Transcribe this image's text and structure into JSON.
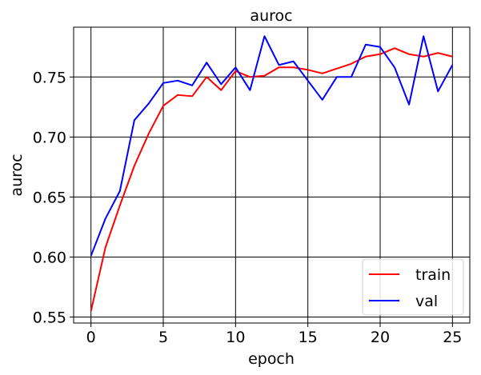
{
  "chart_data": {
    "type": "line",
    "title": "auroc",
    "xlabel": "epoch",
    "ylabel": "auroc",
    "x": [
      0,
      1,
      2,
      3,
      4,
      5,
      6,
      7,
      8,
      9,
      10,
      11,
      12,
      13,
      14,
      15,
      16,
      17,
      18,
      19,
      20,
      21,
      22,
      23,
      24,
      25
    ],
    "x_ticks": [
      0,
      5,
      10,
      15,
      20,
      25
    ],
    "y_ticks": [
      0.55,
      0.6,
      0.65,
      0.7,
      0.75
    ],
    "y_tick_labels": [
      "0.55",
      "0.60",
      "0.65",
      "0.70",
      "0.75"
    ],
    "xlim": [
      -1.2,
      26.2
    ],
    "ylim": [
      0.545,
      0.7915
    ],
    "grid": true,
    "legend_position": "lower-right",
    "series": [
      {
        "name": "train",
        "color": "#ff0000",
        "values": [
          0.555,
          0.608,
          0.643,
          0.676,
          0.703,
          0.726,
          0.735,
          0.734,
          0.75,
          0.739,
          0.755,
          0.75,
          0.751,
          0.758,
          0.758,
          0.756,
          0.753,
          0.757,
          0.761,
          0.767,
          0.769,
          0.774,
          0.769,
          0.767,
          0.77,
          0.767
        ]
      },
      {
        "name": "val",
        "color": "#0000ff",
        "values": [
          0.601,
          0.632,
          0.655,
          0.714,
          0.728,
          0.745,
          0.747,
          0.743,
          0.762,
          0.744,
          0.758,
          0.739,
          0.784,
          0.76,
          0.763,
          0.747,
          0.731,
          0.75,
          0.75,
          0.777,
          0.775,
          0.758,
          0.727,
          0.784,
          0.738,
          0.76
        ]
      }
    ]
  }
}
